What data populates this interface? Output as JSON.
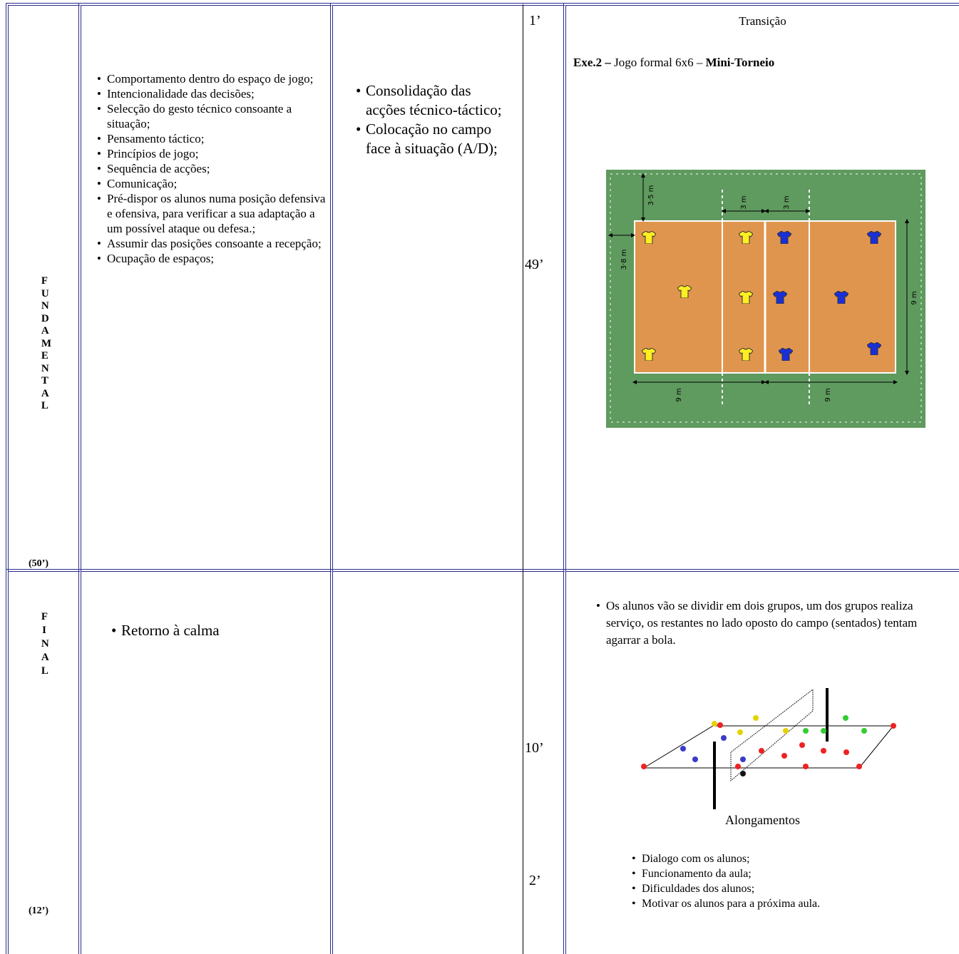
{
  "table": {
    "rows": [
      {
        "phase": "FUNDAMENTAL",
        "duration": "(50’)",
        "objectives": [
          "Comportamento dentro do espaço de jogo;",
          "Intencionalidade das decisões;",
          "Selecção do gesto técnico consoante a situação;",
          "Pensamento táctico;",
          "Princípios de jogo;",
          "Sequência de acções;",
          "Comunicação;",
          "Pré-dispor os alunos numa posição defensiva e ofensiva, para verificar a sua adaptação a um possível ataque ou defesa.;",
          "Assumir das posições consoante a recepção;",
          "Ocupação de espaços;"
        ],
        "content": [
          "Consolidação das acções técnico-táctico;",
          "Colocação no campo face à situação (A/D);"
        ],
        "times": [
          "1’",
          "49’"
        ],
        "description": {
          "heading": "Transição",
          "exercise": [
            "Exe.2 –",
            "Jogo formal 6x6 –",
            "Mini-Torneio"
          ],
          "diagram_labels": [
            "3·5 m",
            "3 m",
            "3 m",
            "3·8 m",
            "9 m",
            "9 m",
            "9 m"
          ]
        }
      },
      {
        "phase": "FINAL",
        "duration": "(12’)",
        "objectives": [
          "Retorno à calma"
        ],
        "content": [],
        "times": [
          "10’",
          "2’"
        ],
        "description": {
          "intro": "Os alunos vão se dividir em dois grupos, um dos grupos realiza serviço, os restantes no lado oposto do campo (sentados) tentam agarrar a bola.",
          "caption": "Alongamentos",
          "items": [
            "Dialogo com os alunos;",
            "Funcionamento da aula;",
            "Dificuldades dos alunos;",
            "Motivar os alunos para a próxima aula."
          ]
        }
      }
    ]
  }
}
